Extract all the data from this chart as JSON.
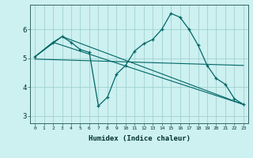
{
  "xlabel": "Humidex (Indice chaleur)",
  "bg_color": "#cdf0f0",
  "grid_color": "#99cccc",
  "line_color": "#006666",
  "xlim": [
    -0.5,
    23.5
  ],
  "ylim": [
    2.75,
    6.85
  ],
  "yticks": [
    3,
    4,
    5,
    6
  ],
  "xticks": [
    0,
    1,
    2,
    3,
    4,
    5,
    6,
    7,
    8,
    9,
    10,
    11,
    12,
    13,
    14,
    15,
    16,
    17,
    18,
    19,
    20,
    21,
    22,
    23
  ],
  "line1_x": [
    0,
    2,
    3,
    4,
    5,
    6,
    7,
    8,
    9,
    10,
    11,
    12,
    13,
    14,
    15,
    16,
    17,
    18,
    19,
    20,
    21,
    22,
    23
  ],
  "line1_y": [
    5.05,
    5.55,
    5.75,
    5.55,
    5.3,
    5.2,
    3.35,
    3.65,
    4.45,
    4.75,
    5.25,
    5.5,
    5.65,
    6.0,
    6.55,
    6.42,
    6.0,
    5.45,
    4.75,
    4.3,
    4.1,
    3.6,
    3.4
  ],
  "line2_x": [
    0,
    2,
    23
  ],
  "line2_y": [
    5.05,
    5.55,
    3.4
  ],
  "line3_x": [
    0,
    3,
    23
  ],
  "line3_y": [
    5.05,
    5.75,
    3.4
  ],
  "line4_x": [
    0,
    23
  ],
  "line4_y": [
    4.97,
    4.75
  ]
}
